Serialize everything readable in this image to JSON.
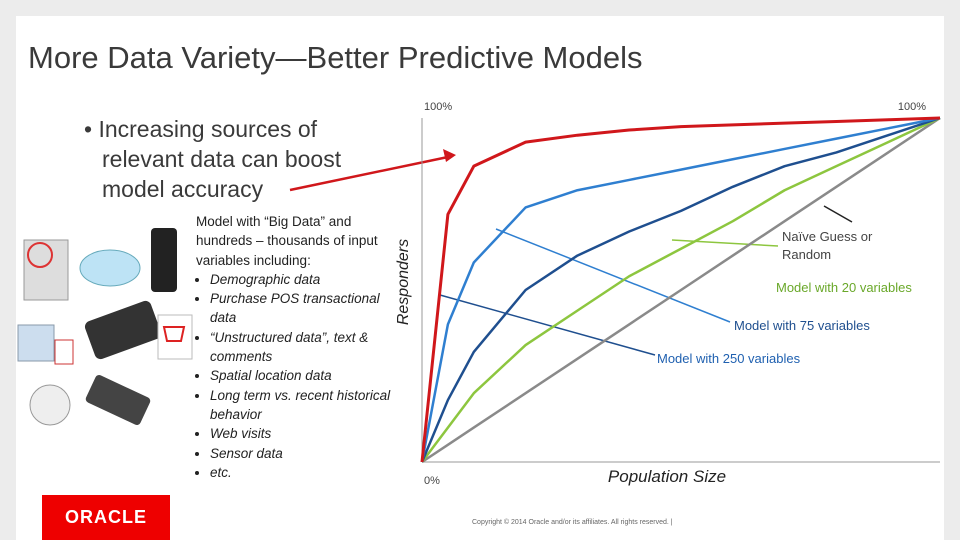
{
  "title": "More Data Variety—Better Predictive Models",
  "bullet": "Increasing sources of relevant data can boost model accuracy",
  "model_text": {
    "intro": "Model with “Big Data” and hundreds – thousands of input variables including:",
    "items": [
      "Demographic data",
      "Purchase POS transactional data",
      "“Unstructured data”, text & comments",
      "Spatial location data",
      "Long term vs. recent historical behavior",
      "Web visits",
      "Sensor data",
      "etc."
    ]
  },
  "chart_data": {
    "type": "line",
    "y_label": "Responders",
    "x_label": "Population Size",
    "x": [
      0,
      5,
      10,
      20,
      30,
      40,
      50,
      60,
      70,
      80,
      90,
      100
    ],
    "xlim": [
      0,
      100
    ],
    "ylim": [
      0,
      100
    ],
    "xticks": [
      {
        "value": 100,
        "label": "100%"
      }
    ],
    "yticks": [
      {
        "value": 0,
        "label": "0%"
      },
      {
        "value": 100,
        "label": "100%"
      }
    ],
    "series": [
      {
        "color": "#d0171b",
        "values": [
          0,
          72,
          86,
          93,
          95,
          96.5,
          97.5,
          98,
          98.5,
          99,
          99.5,
          100
        ]
      },
      {
        "name": "Model with 250 variables",
        "color": "#2f7fd0",
        "values": [
          0,
          40,
          58,
          74,
          79,
          82,
          85,
          88,
          91,
          94,
          97,
          100
        ]
      },
      {
        "name": "Model with 75 variables",
        "color": "#1f4f8f",
        "values": [
          0,
          18,
          32,
          50,
          60,
          67,
          73,
          80,
          86,
          90,
          95,
          100
        ]
      },
      {
        "name": "Model with 20 variables",
        "color": "#8dc63f",
        "values": [
          0,
          10,
          20,
          34,
          44,
          54,
          62,
          70,
          79,
          86,
          93,
          100
        ]
      },
      {
        "name": "Naïve Guess or Random",
        "color": "#8a8a8a",
        "values": [
          0,
          5,
          10,
          20,
          30,
          40,
          50,
          60,
          70,
          80,
          90,
          100
        ]
      }
    ]
  },
  "logo": "ORACLE",
  "footer": "Copyright © 2014 Oracle and/or its affiliates. All rights reserved. |"
}
